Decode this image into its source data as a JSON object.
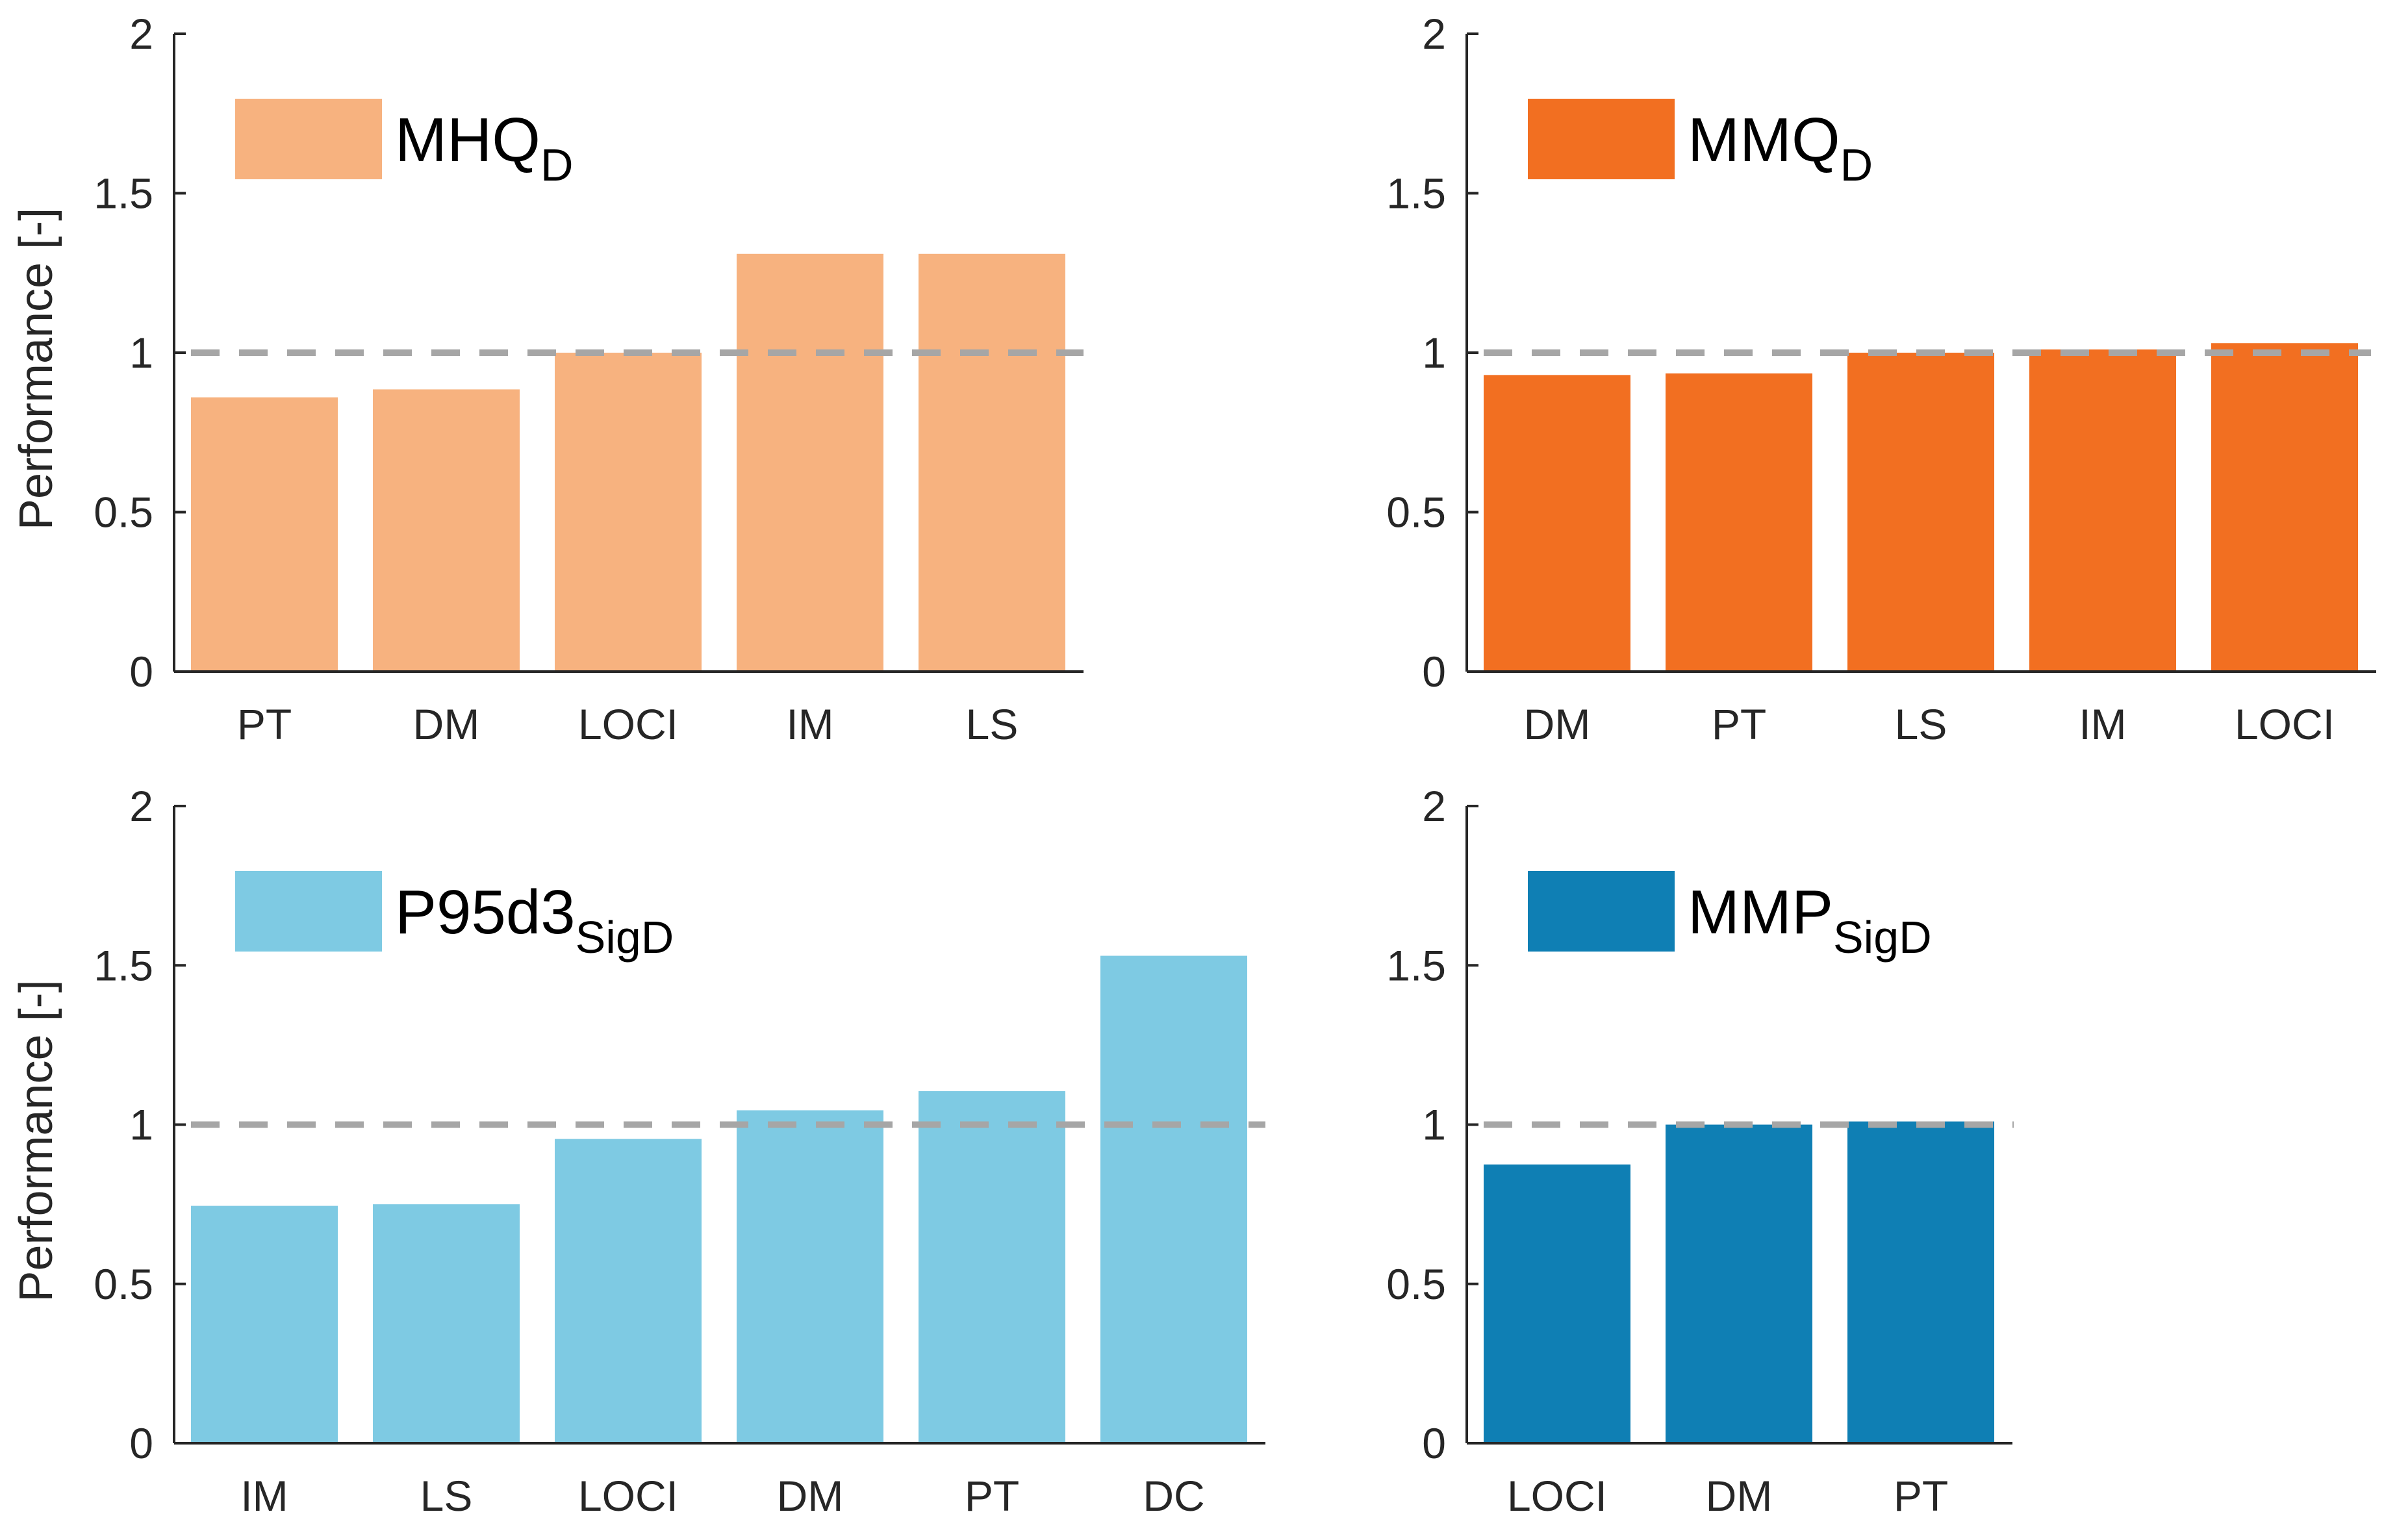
{
  "chart_data": [
    {
      "type": "bar",
      "legend": {
        "main": "MHQ",
        "sub": "D",
        "placement": "top-left"
      },
      "ylabel": "Performance [-]",
      "ylim": [
        0,
        2
      ],
      "yticks": [
        0,
        0.5,
        1,
        1.5,
        2
      ],
      "ytick_labels": [
        "0",
        "0.5",
        "1",
        "1.5",
        "2"
      ],
      "reference_line": 1,
      "color": "#f7b27f",
      "categories": [
        "PT",
        "DM",
        "LOCI",
        "IM",
        "LS"
      ],
      "values": [
        0.86,
        0.885,
        1.0,
        1.31,
        1.31
      ]
    },
    {
      "type": "bar",
      "legend": {
        "main": "MMQ",
        "sub": "D",
        "placement": "top-left"
      },
      "ylabel": "",
      "ylim": [
        0,
        2
      ],
      "yticks": [
        0,
        0.5,
        1,
        1.5,
        2
      ],
      "ytick_labels": [
        "0",
        "0.5",
        "1",
        "1.5",
        "2"
      ],
      "reference_line": 1,
      "color": "#f26f21",
      "categories": [
        "DM",
        "PT",
        "LS",
        "IM",
        "LOCI"
      ],
      "values": [
        0.93,
        0.935,
        1.0,
        1.01,
        1.03
      ]
    },
    {
      "type": "bar",
      "legend": {
        "main": "P95d3",
        "sub": "SigD",
        "placement": "top-left"
      },
      "ylabel": "Performance [-]",
      "ylim": [
        0,
        2
      ],
      "yticks": [
        0,
        0.5,
        1,
        1.5,
        2
      ],
      "ytick_labels": [
        "0",
        "0.5",
        "1",
        "1.5",
        "2"
      ],
      "reference_line": 1,
      "color": "#7ecae3",
      "categories": [
        "IM",
        "LS",
        "LOCI",
        "DM",
        "PT",
        "DC"
      ],
      "values": [
        0.745,
        0.75,
        0.955,
        1.045,
        1.105,
        1.53
      ]
    },
    {
      "type": "bar",
      "legend": {
        "main": "MMP",
        "sub": "SigD",
        "placement": "top-left"
      },
      "ylabel": "",
      "ylim": [
        0,
        2
      ],
      "yticks": [
        0,
        0.5,
        1,
        1.5,
        2
      ],
      "ytick_labels": [
        "0",
        "0.5",
        "1",
        "1.5",
        "2"
      ],
      "reference_line": 1,
      "color": "#0f7fb4",
      "categories": [
        "LOCI",
        "DM",
        "PT"
      ],
      "values": [
        0.875,
        1.0,
        1.01
      ]
    }
  ]
}
